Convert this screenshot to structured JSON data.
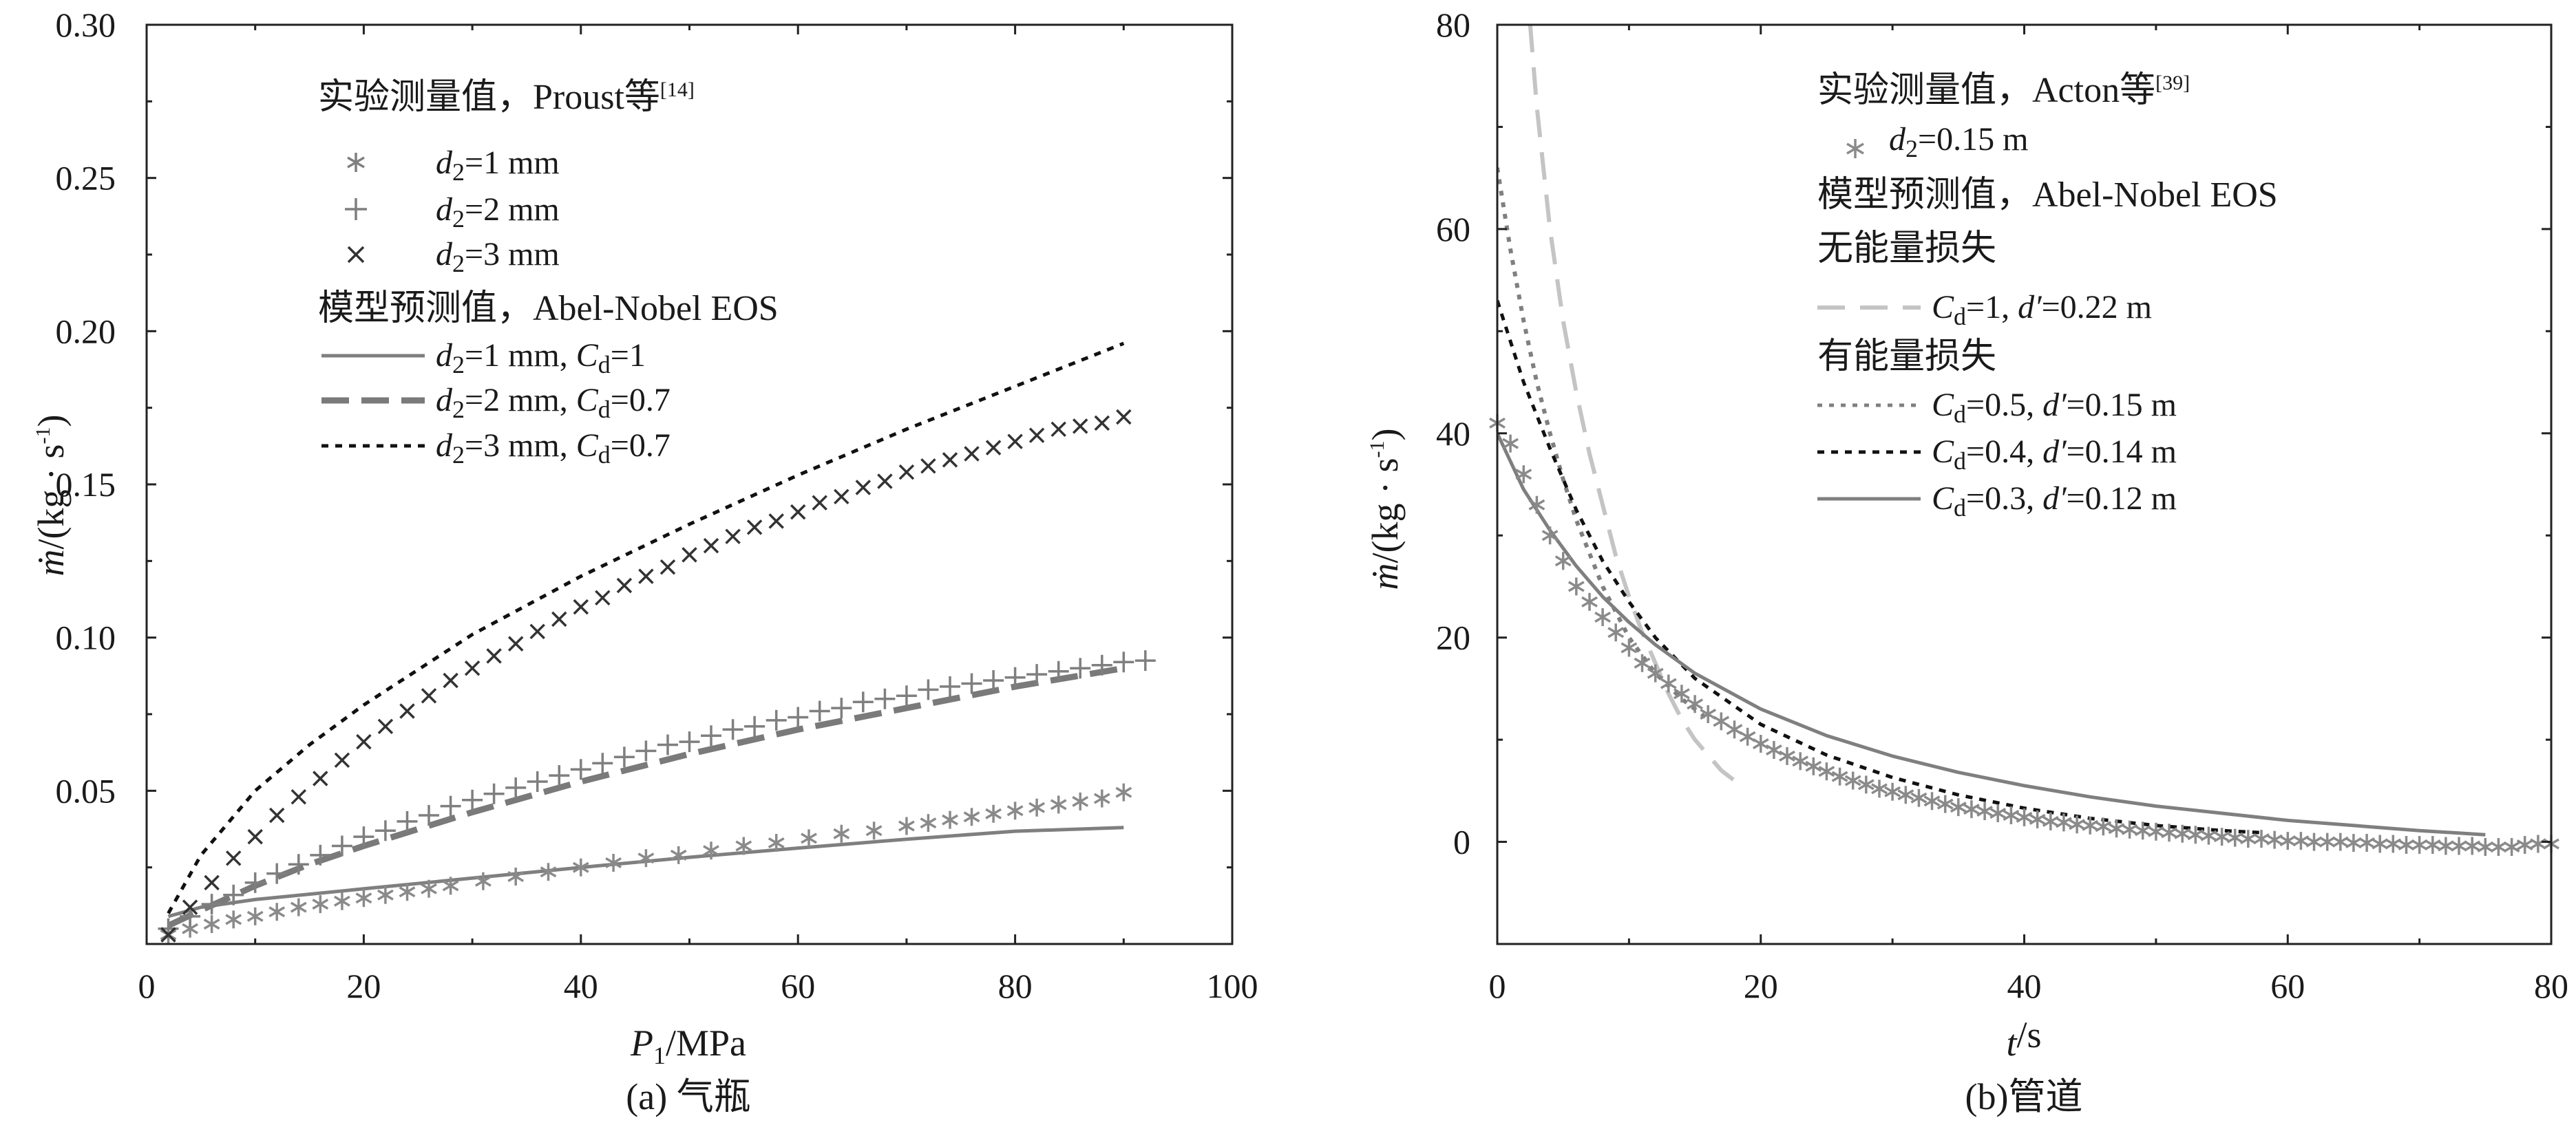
{
  "panels": [
    {
      "key": "a",
      "caption": "(a) 气瓶",
      "xlabel": "P1/MPa",
      "xlabel_main": "P",
      "xlabel_sub": "1",
      "xlabel_unit": "/MPa",
      "ylabel": "ṁ/(kg · s-1)",
      "ylabel_main": "ṁ",
      "ylabel_unit": "/(kg · s",
      "ylabel_sup": "-1",
      "ylabel_close": ")",
      "legend_exp_heading": "实验测量值，Proust等",
      "legend_exp_ref": "[14]",
      "legend_exp": [
        {
          "marker": "asterisk",
          "label": "d2=1 mm",
          "var": "d",
          "sub": "2",
          "rest": "=1 mm"
        },
        {
          "marker": "plus",
          "label": "d2=2 mm",
          "var": "d",
          "sub": "2",
          "rest": "=2 mm"
        },
        {
          "marker": "cross",
          "label": "d2=3 mm",
          "var": "d",
          "sub": "2",
          "rest": "=3 mm"
        }
      ],
      "legend_model_heading": "模型预测值，Abel-Nobel EOS",
      "legend_model": [
        {
          "style": "solid",
          "label": "d2=1 mm, Cd=1",
          "var": "d",
          "sub": "2",
          "mid": "=1 mm, ",
          "var2": "C",
          "sub2": "d",
          "rest": "=1"
        },
        {
          "style": "longdash",
          "label": "d2=2 mm, Cd=0.7",
          "var": "d",
          "sub": "2",
          "mid": "=2 mm, ",
          "var2": "C",
          "sub2": "d",
          "rest": "=0.7"
        },
        {
          "style": "shortdash",
          "label": "d2=3 mm, Cd=0.7",
          "var": "d",
          "sub": "2",
          "mid": "=3 mm, ",
          "var2": "C",
          "sub2": "d",
          "rest": "=0.7"
        }
      ]
    },
    {
      "key": "b",
      "caption": "(b)管道",
      "xlabel": "t/s",
      "xlabel_main": "t",
      "xlabel_sub": "",
      "xlabel_unit": "/s",
      "ylabel": "ṁ/(kg · s-1)",
      "ylabel_main": "ṁ",
      "ylabel_unit": "/(kg · s",
      "ylabel_sup": "-1",
      "ylabel_close": ")",
      "legend_exp_heading": "实验测量值，Acton等",
      "legend_exp_ref": "[39]",
      "legend_exp": [
        {
          "marker": "asterisk",
          "label": "d2=0.15 m",
          "var": "d",
          "sub": "2",
          "rest": "=0.15 m"
        }
      ],
      "legend_model_heading": "模型预测值，Abel-Nobel EOS",
      "legend_group1_heading": "无能量损失",
      "legend_group1": [
        {
          "style": "longdash-light",
          "label": "Cd=1, d′=0.22 m",
          "var": "C",
          "sub": "d",
          "mid": "=1, ",
          "var2": "d′",
          "rest": "=0.22 m"
        }
      ],
      "legend_group2_heading": "有能量损失",
      "legend_group2": [
        {
          "style": "dot",
          "label": "Cd=0.5, d′=0.15 m",
          "var": "C",
          "sub": "d",
          "mid": "=0.5, ",
          "var2": "d′",
          "rest": "=0.15 m"
        },
        {
          "style": "shortdash",
          "label": "Cd=0.4, d′=0.14 m",
          "var": "C",
          "sub": "d",
          "mid": "=0.4, ",
          "var2": "d′",
          "rest": "=0.14 m"
        },
        {
          "style": "solid",
          "label": "Cd=0.3, d′=0.12 m",
          "var": "C",
          "sub": "d",
          "mid": "=0.3, ",
          "var2": "d′",
          "rest": "=0.12 m"
        }
      ]
    }
  ],
  "chart_data": [
    {
      "type": "line",
      "title": "(a) 气瓶",
      "xlabel": "P1/MPa",
      "ylabel": "ṁ/(kg · s-1)",
      "xlim": [
        0,
        100
      ],
      "ylim": [
        0,
        0.3
      ],
      "xticks": [
        0,
        20,
        40,
        60,
        80,
        100
      ],
      "xtick_labels": [
        "0",
        "20",
        "40",
        "60",
        "80",
        "100"
      ],
      "yticks": [
        0.05,
        0.1,
        0.15,
        0.2,
        0.25,
        0.3
      ],
      "ytick_labels": [
        "0.05",
        "0.10",
        "0.15",
        "0.20",
        "0.25",
        "0.30"
      ],
      "grid": false,
      "legend_position": "top-left",
      "series": [
        {
          "name": "d2=1 mm, Cd=1",
          "kind": "model",
          "style": "solid",
          "x": [
            2,
            5,
            10,
            20,
            30,
            40,
            50,
            60,
            70,
            80,
            90
          ],
          "y": [
            0.009,
            0.012,
            0.0145,
            0.018,
            0.0215,
            0.025,
            0.0283,
            0.0313,
            0.0342,
            0.0368,
            0.038
          ]
        },
        {
          "name": "d2=2 mm, Cd=0.7",
          "kind": "model",
          "style": "longdash",
          "x": [
            2,
            5,
            10,
            15,
            20,
            25,
            30,
            40,
            50,
            60,
            70,
            80,
            90
          ],
          "y": [
            0.006,
            0.011,
            0.019,
            0.026,
            0.032,
            0.0375,
            0.043,
            0.053,
            0.062,
            0.07,
            0.077,
            0.084,
            0.09
          ]
        },
        {
          "name": "d2=3 mm, Cd=0.7",
          "kind": "model",
          "style": "shortdash",
          "x": [
            2,
            5,
            10,
            15,
            20,
            30,
            40,
            50,
            60,
            70,
            80,
            90
          ],
          "y": [
            0.01,
            0.029,
            0.05,
            0.065,
            0.078,
            0.101,
            0.12,
            0.137,
            0.153,
            0.168,
            0.182,
            0.196
          ]
        },
        {
          "name": "d2=1 mm",
          "kind": "experiment",
          "marker": "asterisk",
          "x": [
            2,
            4,
            6,
            8,
            10,
            12,
            14,
            16,
            18,
            20,
            22,
            24,
            26,
            28,
            31,
            34,
            37,
            40,
            43,
            46,
            49,
            52,
            55,
            58,
            61,
            64,
            67,
            70,
            72,
            74,
            76,
            78,
            80,
            82,
            84,
            86,
            88,
            90
          ],
          "y": [
            0.003,
            0.005,
            0.0065,
            0.008,
            0.009,
            0.0105,
            0.012,
            0.013,
            0.014,
            0.015,
            0.016,
            0.017,
            0.018,
            0.019,
            0.0205,
            0.022,
            0.0235,
            0.025,
            0.0265,
            0.028,
            0.029,
            0.0305,
            0.032,
            0.033,
            0.0345,
            0.036,
            0.037,
            0.0385,
            0.0395,
            0.0405,
            0.0415,
            0.0425,
            0.0435,
            0.0445,
            0.0455,
            0.0465,
            0.0475,
            0.0495
          ]
        },
        {
          "name": "d2=2 mm",
          "kind": "experiment",
          "marker": "plus",
          "x": [
            2,
            4,
            6,
            8,
            10,
            12,
            14,
            16,
            18,
            20,
            22,
            24,
            26,
            28,
            30,
            32,
            34,
            36,
            38,
            40,
            42,
            44,
            46,
            48,
            50,
            52,
            54,
            56,
            58,
            60,
            62,
            64,
            66,
            68,
            70,
            72,
            74,
            76,
            78,
            80,
            82,
            84,
            86,
            88,
            90,
            92
          ],
          "y": [
            0.005,
            0.009,
            0.013,
            0.016,
            0.02,
            0.023,
            0.026,
            0.029,
            0.032,
            0.035,
            0.037,
            0.04,
            0.042,
            0.045,
            0.047,
            0.049,
            0.051,
            0.053,
            0.055,
            0.057,
            0.059,
            0.061,
            0.063,
            0.065,
            0.066,
            0.068,
            0.07,
            0.071,
            0.073,
            0.074,
            0.076,
            0.077,
            0.079,
            0.08,
            0.081,
            0.083,
            0.084,
            0.085,
            0.086,
            0.087,
            0.088,
            0.089,
            0.09,
            0.091,
            0.092,
            0.0925
          ]
        },
        {
          "name": "d2=3 mm",
          "kind": "experiment",
          "marker": "cross",
          "x": [
            2,
            4,
            6,
            8,
            10,
            12,
            14,
            16,
            18,
            20,
            22,
            24,
            26,
            28,
            30,
            32,
            34,
            36,
            38,
            40,
            42,
            44,
            46,
            48,
            50,
            52,
            54,
            56,
            58,
            60,
            62,
            64,
            66,
            68,
            70,
            72,
            74,
            76,
            78,
            80,
            82,
            84,
            86,
            88,
            90
          ],
          "y": [
            0.003,
            0.012,
            0.02,
            0.028,
            0.035,
            0.042,
            0.048,
            0.054,
            0.06,
            0.066,
            0.071,
            0.076,
            0.081,
            0.086,
            0.09,
            0.094,
            0.098,
            0.102,
            0.106,
            0.11,
            0.113,
            0.117,
            0.12,
            0.123,
            0.127,
            0.13,
            0.133,
            0.136,
            0.138,
            0.141,
            0.144,
            0.146,
            0.149,
            0.151,
            0.154,
            0.156,
            0.158,
            0.16,
            0.162,
            0.164,
            0.166,
            0.168,
            0.169,
            0.17,
            0.172
          ]
        }
      ]
    },
    {
      "type": "line",
      "title": "(b)管道",
      "xlabel": "t/s",
      "ylabel": "ṁ/(kg · s-1)",
      "xlim": [
        0,
        80
      ],
      "ylim": [
        -10,
        80
      ],
      "xticks": [
        0,
        20,
        40,
        60,
        80
      ],
      "xtick_labels": [
        "0",
        "20",
        "40",
        "60",
        "80"
      ],
      "yticks": [
        0,
        20,
        40,
        60,
        80
      ],
      "ytick_labels": [
        "0",
        "20",
        "40",
        "60",
        "80"
      ],
      "grid": false,
      "legend_position": "top-right",
      "series": [
        {
          "name": "Cd=1, d′=0.22 m",
          "kind": "model",
          "style": "longdash-light",
          "x": [
            2.5,
            3,
            4,
            5,
            6,
            7,
            8,
            9,
            10,
            11,
            12,
            13,
            14,
            15,
            16,
            17,
            18
          ],
          "y": [
            80,
            72,
            60,
            51,
            44,
            38,
            33,
            28,
            24,
            20.5,
            17.5,
            14.5,
            12,
            10,
            8.5,
            7,
            6
          ]
        },
        {
          "name": "Cd=0.5, d′=0.15 m",
          "kind": "model",
          "style": "dot",
          "x": [
            0,
            1,
            2,
            3,
            4,
            5,
            6,
            8,
            10,
            12,
            14,
            16
          ],
          "y": [
            66,
            58,
            51,
            45,
            40,
            35.5,
            31.5,
            25,
            20,
            16.5,
            14,
            12
          ]
        },
        {
          "name": "Cd=0.4, d′=0.14 m",
          "kind": "model",
          "style": "shortdash",
          "x": [
            0,
            2,
            4,
            6,
            8,
            10,
            12,
            15,
            20,
            25,
            30,
            35,
            40,
            45,
            50,
            55,
            58
          ],
          "y": [
            53,
            45,
            38.5,
            32.5,
            27.5,
            23.5,
            20,
            16,
            11.5,
            8.5,
            6.3,
            4.6,
            3.3,
            2.3,
            1.6,
            1.1,
            0.9
          ]
        },
        {
          "name": "Cd=0.3, d′=0.12 m",
          "kind": "model",
          "style": "solid",
          "x": [
            0,
            2,
            4,
            6,
            8,
            10,
            12,
            15,
            20,
            25,
            30,
            35,
            40,
            45,
            50,
            55,
            60,
            65,
            70,
            75
          ],
          "y": [
            40,
            34.5,
            30.5,
            27,
            24,
            21.5,
            19.3,
            16.5,
            13,
            10.4,
            8.4,
            6.8,
            5.5,
            4.4,
            3.5,
            2.8,
            2.1,
            1.6,
            1.1,
            0.7
          ]
        },
        {
          "name": "d2=0.15 m",
          "kind": "experiment",
          "marker": "asterisk",
          "x": [
            0,
            1,
            2,
            3,
            4,
            5,
            6,
            7,
            8,
            9,
            10,
            11,
            12,
            13,
            14,
            15,
            16,
            17,
            18,
            19,
            20,
            21,
            22,
            23,
            24,
            25,
            26,
            27,
            28,
            29,
            30,
            31,
            32,
            33,
            34,
            35,
            36,
            37,
            38,
            39,
            40,
            41,
            42,
            43,
            44,
            45,
            46,
            47,
            48,
            49,
            50,
            51,
            52,
            53,
            54,
            55,
            56,
            57,
            58,
            59,
            60,
            61,
            62,
            63,
            64,
            65,
            66,
            67,
            68,
            69,
            70,
            71,
            72,
            73,
            74,
            75,
            76,
            77,
            78,
            79,
            80
          ],
          "y": [
            41,
            39,
            36,
            33,
            30,
            27.5,
            25,
            23.5,
            22,
            20.5,
            19,
            17.5,
            16.5,
            15.5,
            14.5,
            13.5,
            12.5,
            11.8,
            11,
            10.3,
            9.6,
            9,
            8.4,
            7.9,
            7.4,
            6.9,
            6.4,
            6,
            5.6,
            5.2,
            4.9,
            4.6,
            4.3,
            4,
            3.7,
            3.4,
            3.2,
            3,
            2.8,
            2.6,
            2.4,
            2.2,
            2,
            1.9,
            1.7,
            1.6,
            1.5,
            1.3,
            1.2,
            1.1,
            1,
            0.9,
            0.8,
            0.7,
            0.6,
            0.5,
            0.4,
            0.3,
            0.3,
            0.2,
            0.1,
            0.1,
            0,
            0,
            0,
            -0.1,
            -0.1,
            -0.2,
            -0.2,
            -0.3,
            -0.3,
            -0.3,
            -0.4,
            -0.4,
            -0.4,
            -0.5,
            -0.5,
            -0.5,
            -0.3,
            -0.2,
            -0.2
          ]
        }
      ]
    }
  ]
}
